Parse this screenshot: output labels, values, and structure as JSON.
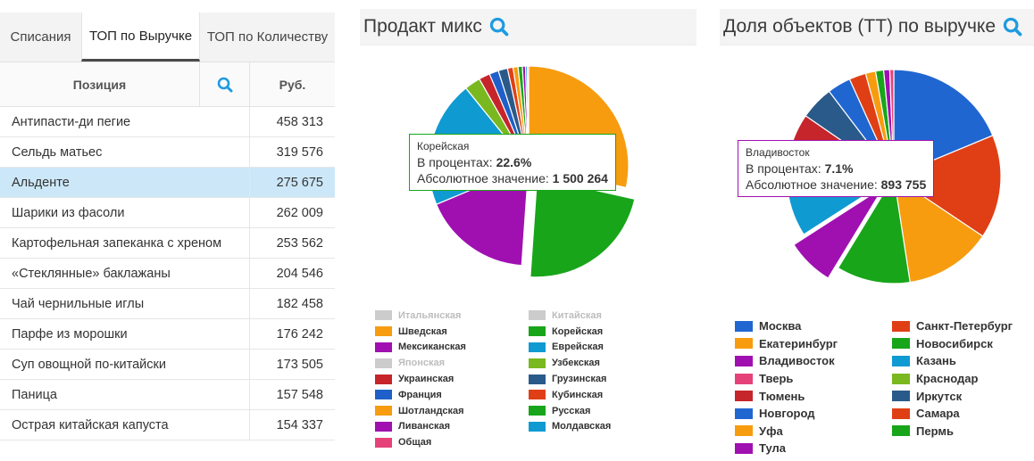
{
  "table": {
    "tabs": [
      "Списания",
      "ТОП по Выручке",
      "ТОП по Количеству"
    ],
    "active_tab": 1,
    "col_position": "Позиция",
    "col_rub": "Руб.",
    "rows": [
      {
        "name": "Антипасти-ди пегие",
        "value": "458 313"
      },
      {
        "name": "Сельдь матьес",
        "value": "319 576"
      },
      {
        "name": "Альденте",
        "value": "275 675"
      },
      {
        "name": "Шарики из фасоли",
        "value": "262 009"
      },
      {
        "name": "Картофельная запеканка с хреном",
        "value": "253 562"
      },
      {
        "name": "«Стеклянные» баклажаны",
        "value": "204 546"
      },
      {
        "name": "Чай чернильные иглы",
        "value": "182 458"
      },
      {
        "name": "Парфе из морошки",
        "value": "176 242"
      },
      {
        "name": "Суп овощной по-китайски",
        "value": "173 505"
      },
      {
        "name": "Паница",
        "value": "157 548"
      },
      {
        "name": "Острая китайская капуста",
        "value": "154 337"
      }
    ],
    "selected_row": 2
  },
  "mix": {
    "title": "Продакт микс",
    "tooltip": {
      "name": "Корейская",
      "pct_label": "В процентах:",
      "pct_value": "22.6%",
      "abs_label": "Абсолютное значение:",
      "abs_value": "1 500 264"
    }
  },
  "share": {
    "title": "Доля объектов (ТТ) по выручке",
    "tooltip": {
      "name": "Владивосток",
      "pct_label": "В процентах:",
      "pct_value": "7.1%",
      "abs_label": "Абсолютное значение:",
      "abs_value": "893 755"
    }
  },
  "chart_data": [
    {
      "type": "pie",
      "title": "Продакт микс",
      "slices": [
        {
          "name": "Шведская",
          "value": 28.5,
          "color": "#f79c0f"
        },
        {
          "name": "Корейская",
          "value": 22.6,
          "color": "#18a51a",
          "exploded": true
        },
        {
          "name": "Мексиканская",
          "value": 17.6,
          "color": "#a010b1"
        },
        {
          "name": "Еврейская",
          "value": 20.5,
          "color": "#109ad2"
        },
        {
          "name": "Узбекская",
          "value": 2.6,
          "color": "#79b81f"
        },
        {
          "name": "Украинская",
          "value": 1.8,
          "color": "#c6252b"
        },
        {
          "name": "Франция",
          "value": 1.5,
          "color": "#1f5fca"
        },
        {
          "name": "Грузинская",
          "value": 1.5,
          "color": "#2a5a8a"
        },
        {
          "name": "Кубинская",
          "value": 0.9,
          "color": "#e03f16"
        },
        {
          "name": "Шотландская",
          "value": 0.8,
          "color": "#f79c0f"
        },
        {
          "name": "Русская",
          "value": 0.7,
          "color": "#18a51a"
        },
        {
          "name": "Ливанская",
          "value": 0.5,
          "color": "#a010b1"
        },
        {
          "name": "Молдавская",
          "value": 0.3,
          "color": "#109ad2"
        },
        {
          "name": "Общая",
          "value": 0.2,
          "color": "#e6427a"
        }
      ],
      "legend": [
        {
          "name": "Итальянская",
          "color": "#cccccc",
          "disabled": true
        },
        {
          "name": "Китайская",
          "color": "#cccccc",
          "disabled": true
        },
        {
          "name": "Шведская",
          "color": "#f79c0f"
        },
        {
          "name": "Корейская",
          "color": "#18a51a"
        },
        {
          "name": "Мексиканская",
          "color": "#a010b1"
        },
        {
          "name": "Еврейская",
          "color": "#109ad2"
        },
        {
          "name": "Японская",
          "color": "#cccccc",
          "disabled": true
        },
        {
          "name": "Узбекская",
          "color": "#79b81f"
        },
        {
          "name": "Украинская",
          "color": "#c6252b"
        },
        {
          "name": "Грузинская",
          "color": "#2a5a8a"
        },
        {
          "name": "Франция",
          "color": "#1f5fca"
        },
        {
          "name": "Кубинская",
          "color": "#e03f16"
        },
        {
          "name": "Шотландская",
          "color": "#f79c0f"
        },
        {
          "name": "Русская",
          "color": "#18a51a"
        },
        {
          "name": "Ливанская",
          "color": "#a010b1"
        },
        {
          "name": "Молдавская",
          "color": "#109ad2"
        },
        {
          "name": "Общая",
          "color": "#e6427a"
        }
      ],
      "legend_position": "bottom"
    },
    {
      "type": "pie",
      "title": "Доля объектов (ТТ) по выручке",
      "slices": [
        {
          "name": "Москва",
          "value": 18.5,
          "color": "#2066d1"
        },
        {
          "name": "Санкт-Петербург",
          "value": 15.5,
          "color": "#e03f16"
        },
        {
          "name": "Екатеринбург",
          "value": 13.0,
          "color": "#f79c0f"
        },
        {
          "name": "Новосибирск",
          "value": 11.0,
          "color": "#18a51a"
        },
        {
          "name": "Владивосток",
          "value": 7.1,
          "color": "#a010b1",
          "exploded": true
        },
        {
          "name": "Казань",
          "value": 7.5,
          "color": "#109ad2"
        },
        {
          "name": "Краснодар",
          "value": 5.5,
          "color": "#79b81f"
        },
        {
          "name": "Тюмень",
          "value": 5.5,
          "color": "#c6252b"
        },
        {
          "name": "Иркутск",
          "value": 5.0,
          "color": "#2a5a8a"
        },
        {
          "name": "Новгород",
          "value": 3.5,
          "color": "#2066d1"
        },
        {
          "name": "Самара",
          "value": 2.5,
          "color": "#e03f16"
        },
        {
          "name": "Уфа",
          "value": 1.5,
          "color": "#f79c0f"
        },
        {
          "name": "Пермь",
          "value": 1.2,
          "color": "#18a51a"
        },
        {
          "name": "Тула",
          "value": 0.9,
          "color": "#a010b1"
        },
        {
          "name": "Тверь",
          "value": 0.6,
          "color": "#e6427a"
        }
      ],
      "legend": [
        {
          "name": "Москва",
          "color": "#2066d1"
        },
        {
          "name": "Санкт-Петербург",
          "color": "#e03f16"
        },
        {
          "name": "Екатеринбург",
          "color": "#f79c0f"
        },
        {
          "name": "Новосибирск",
          "color": "#18a51a"
        },
        {
          "name": "Владивосток",
          "color": "#a010b1"
        },
        {
          "name": "Казань",
          "color": "#109ad2"
        },
        {
          "name": "Тверь",
          "color": "#e6427a"
        },
        {
          "name": "Краснодар",
          "color": "#79b81f"
        },
        {
          "name": "Тюмень",
          "color": "#c6252b"
        },
        {
          "name": "Иркутск",
          "color": "#2a5a8a"
        },
        {
          "name": "Новгород",
          "color": "#2066d1"
        },
        {
          "name": "Самара",
          "color": "#e03f16"
        },
        {
          "name": "Уфа",
          "color": "#f79c0f"
        },
        {
          "name": "Пермь",
          "color": "#18a51a"
        },
        {
          "name": "Тула",
          "color": "#a010b1"
        }
      ],
      "legend_position": "bottom"
    }
  ]
}
